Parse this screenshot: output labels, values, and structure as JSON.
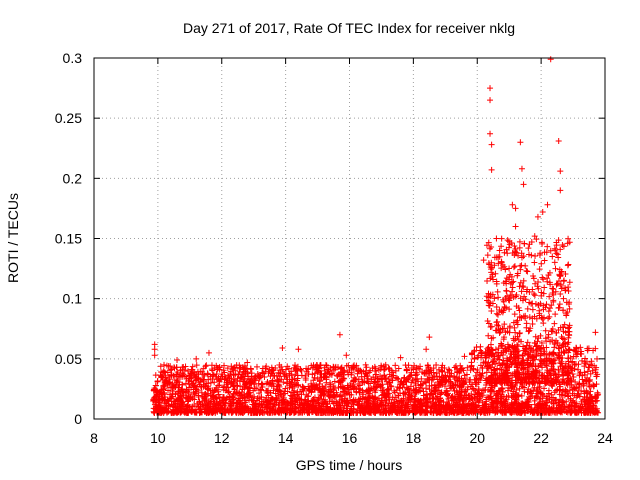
{
  "chart_data": {
    "type": "scatter",
    "title": "Day 271 of 2017, Rate Of TEC Index for receiver nklg",
    "xlabel": "GPS time / hours",
    "ylabel": "ROTI / TECUs",
    "xlim": [
      8,
      24
    ],
    "ylim": [
      0,
      0.3
    ],
    "xticks": [
      8,
      10,
      12,
      14,
      16,
      18,
      20,
      22,
      24
    ],
    "yticks": [
      0,
      0.05,
      0.1,
      0.15,
      0.2,
      0.25,
      0.3
    ],
    "ytick_labels": [
      "0",
      "0.05",
      "0.1",
      "0.15",
      "0.2",
      "0.25",
      "0.3"
    ],
    "grid": true,
    "marker": "+",
    "color": "#ff0000",
    "series": [
      {
        "name": "ROTI",
        "x_range": [
          9.85,
          23.8
        ],
        "points": [
          [
            9.9,
            0.062
          ],
          [
            9.9,
            0.058
          ],
          [
            9.9,
            0.053
          ],
          [
            10.6,
            0.049
          ],
          [
            11.2,
            0.05
          ],
          [
            11.6,
            0.055
          ],
          [
            12.8,
            0.047
          ],
          [
            13.9,
            0.059
          ],
          [
            14.4,
            0.058
          ],
          [
            15.7,
            0.07
          ],
          [
            15.9,
            0.053
          ],
          [
            17.6,
            0.051
          ],
          [
            18.5,
            0.068
          ],
          [
            18.4,
            0.058
          ],
          [
            19.6,
            0.052
          ],
          [
            20.1,
            0.06
          ],
          [
            20.2,
            0.132
          ],
          [
            20.3,
            0.102
          ],
          [
            20.4,
            0.275
          ],
          [
            20.4,
            0.265
          ],
          [
            20.4,
            0.237
          ],
          [
            20.45,
            0.228
          ],
          [
            20.45,
            0.207
          ],
          [
            20.6,
            0.15
          ],
          [
            20.7,
            0.14
          ],
          [
            20.8,
            0.128
          ],
          [
            21.0,
            0.118
          ],
          [
            21.1,
            0.178
          ],
          [
            21.2,
            0.175
          ],
          [
            21.2,
            0.16
          ],
          [
            21.35,
            0.23
          ],
          [
            21.4,
            0.208
          ],
          [
            21.45,
            0.195
          ],
          [
            21.6,
            0.142
          ],
          [
            21.8,
            0.152
          ],
          [
            21.9,
            0.168
          ],
          [
            22.05,
            0.172
          ],
          [
            22.2,
            0.178
          ],
          [
            22.3,
            0.299
          ],
          [
            22.35,
            0.135
          ],
          [
            22.45,
            0.125
          ],
          [
            22.55,
            0.231
          ],
          [
            22.6,
            0.206
          ],
          [
            22.6,
            0.19
          ],
          [
            22.7,
            0.1
          ],
          [
            23.7,
            0.072
          ],
          [
            23.75,
            0.05
          ]
        ],
        "bands": [
          {
            "x_from": 9.85,
            "x_to": 19.8,
            "y_min": 0.005,
            "y_max": 0.045
          },
          {
            "x_from": 19.8,
            "x_to": 23.8,
            "y_min": 0.005,
            "y_max": 0.06
          },
          {
            "x_from": 20.3,
            "x_to": 22.9,
            "y_min": 0.03,
            "y_max": 0.15
          }
        ]
      }
    ]
  }
}
